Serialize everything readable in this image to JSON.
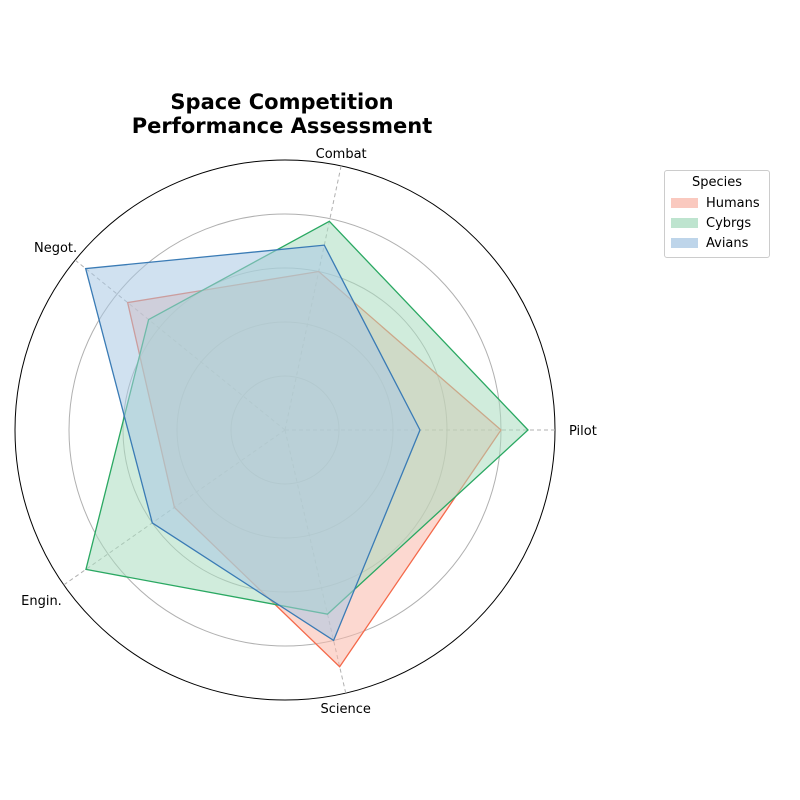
{
  "chart_data": {
    "type": "radar",
    "title": "Space Competition\nPerformance Assessment",
    "axes": [
      "Pilot",
      "Combat",
      "Negot.",
      "Engin.",
      "Science"
    ],
    "rmax": 10,
    "grid_rings": [
      2,
      4,
      6,
      8,
      10
    ],
    "grid": true,
    "legend": {
      "title": "Species",
      "placement": "outside-top-right"
    },
    "series": [
      {
        "name": "Humans",
        "values": [
          8.0,
          6.0,
          7.5,
          5.0,
          9.0
        ],
        "color": "#f4694a",
        "fill": "#f9b8aa"
      },
      {
        "name": "Cybrgs",
        "values": [
          9.0,
          7.9,
          6.5,
          9.0,
          7.0
        ],
        "color": "#2aa862",
        "fill": "#a9dcbf"
      },
      {
        "name": "Avians",
        "values": [
          5.0,
          7.0,
          9.5,
          6.0,
          8.0
        ],
        "color": "#3a7bb5",
        "fill": "#a9c8e4"
      }
    ]
  }
}
